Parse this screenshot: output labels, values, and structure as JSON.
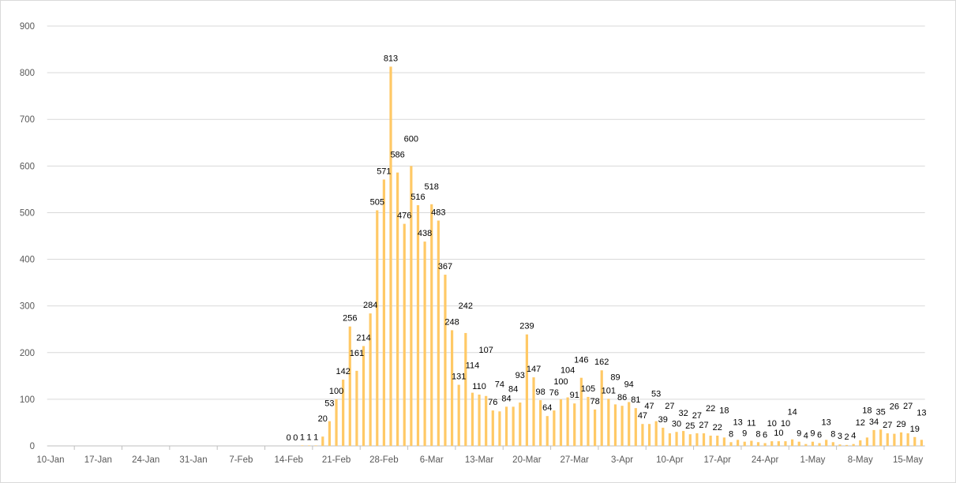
{
  "chart_data": {
    "type": "bar",
    "title": "",
    "xlabel": "",
    "ylabel": "",
    "ylim": [
      0,
      900
    ],
    "yticks": [
      0,
      100,
      200,
      300,
      400,
      500,
      600,
      700,
      800,
      900
    ],
    "grid": true,
    "bar_color": "#FFC966",
    "grid_color": "#D9D9D9",
    "x_start": "2020-01-10",
    "x_end": "2020-05-17",
    "xtick_labels": [
      "10-Jan",
      "17-Jan",
      "24-Jan",
      "31-Jan",
      "7-Feb",
      "14-Feb",
      "21-Feb",
      "28-Feb",
      "6-Mar",
      "13-Mar",
      "20-Mar",
      "27-Mar",
      "3-Apr",
      "10-Apr",
      "17-Apr",
      "24-Apr",
      "1-May",
      "8-May",
      "15-May"
    ],
    "series_start": "2020-02-14",
    "values": [
      0,
      0,
      1,
      1,
      1,
      20,
      53,
      100,
      142,
      256,
      161,
      214,
      284,
      505,
      571,
      813,
      586,
      476,
      600,
      516,
      438,
      518,
      483,
      367,
      248,
      131,
      242,
      114,
      110,
      107,
      76,
      74,
      84,
      84,
      93,
      239,
      147,
      98,
      64,
      76,
      100,
      104,
      91,
      146,
      105,
      78,
      162,
      101,
      89,
      86,
      94,
      81,
      47,
      47,
      53,
      39,
      27,
      30,
      32,
      25,
      27,
      27,
      22,
      22,
      18,
      8,
      13,
      9,
      11,
      8,
      6,
      10,
      10,
      10,
      14,
      9,
      4,
      9,
      6,
      13,
      8,
      3,
      2,
      4,
      12,
      18,
      34,
      35,
      27,
      26,
      29,
      27,
      19,
      13
    ]
  }
}
